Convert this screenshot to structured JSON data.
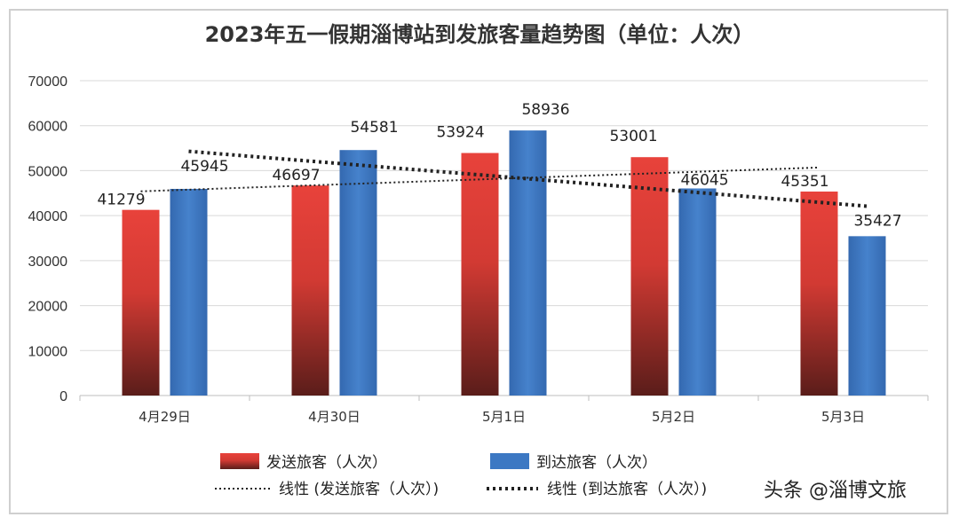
{
  "watermark": "头条 @淄博文旅",
  "colors": {
    "depart_top": "#e8423b",
    "depart_bottom": "#5a1d1a",
    "arrive": "#3c78c3",
    "grid": "#d9d9d9",
    "trend": "#222222"
  },
  "chart_data": {
    "type": "bar",
    "title": "2023年五一假期淄博站到发旅客量趋势图（单位：人次）",
    "categories": [
      "4月29日",
      "4月30日",
      "5月1日",
      "5月2日",
      "5月3日"
    ],
    "series": [
      {
        "name": "发送旅客（人次）",
        "values": [
          41279,
          46697,
          53924,
          53001,
          45351
        ]
      },
      {
        "name": "到达旅客（人次）",
        "values": [
          45945,
          54581,
          58936,
          46045,
          35427
        ]
      }
    ],
    "trendlines": [
      {
        "name": "线性 (发送旅客（人次）)",
        "of": "发送旅客（人次）",
        "start": 45400,
        "end": 50700
      },
      {
        "name": "线性 (到达旅客（人次）)",
        "of": "到达旅客（人次）",
        "start": 54300,
        "end": 42100
      }
    ],
    "y_ticks": [
      "0",
      "10000",
      "20000",
      "30000",
      "40000",
      "50000",
      "60000",
      "70000"
    ],
    "ylim": [
      0,
      70000
    ],
    "grid": true,
    "legend_position": "bottom"
  }
}
